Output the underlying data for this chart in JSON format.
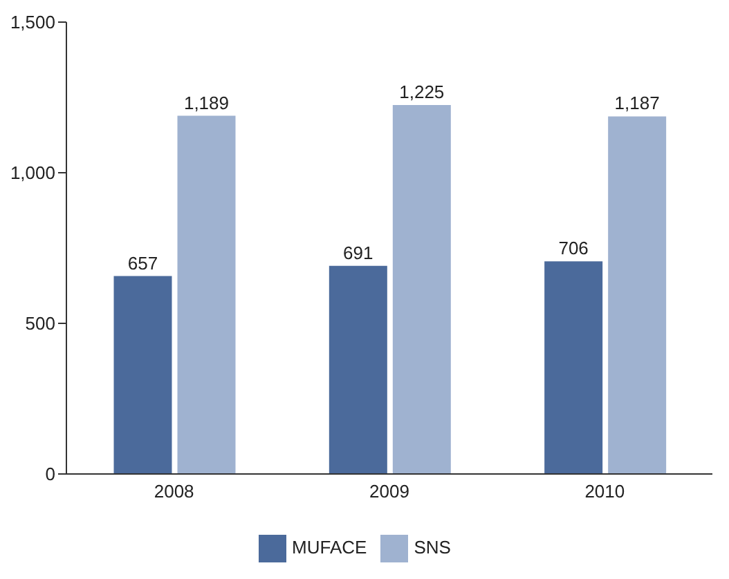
{
  "chart_data": {
    "type": "bar",
    "categories": [
      "2008",
      "2009",
      "2010"
    ],
    "series": [
      {
        "name": "MUFACE",
        "color": "#4b6a9b",
        "values": [
          657,
          691,
          706
        ],
        "value_labels": [
          "657",
          "691",
          "706"
        ]
      },
      {
        "name": "SNS",
        "color": "#9fb2d0",
        "values": [
          1189,
          1225,
          1187
        ],
        "value_labels": [
          "1,189",
          "1,225",
          "1,187"
        ]
      }
    ],
    "ylim": [
      0,
      1500
    ],
    "yticks": [
      {
        "value": 0,
        "label": "0"
      },
      {
        "value": 500,
        "label": "500"
      },
      {
        "value": 1000,
        "label": "1,000"
      },
      {
        "value": 1500,
        "label": "1,500"
      }
    ],
    "grid": false,
    "legend": "bottom"
  }
}
